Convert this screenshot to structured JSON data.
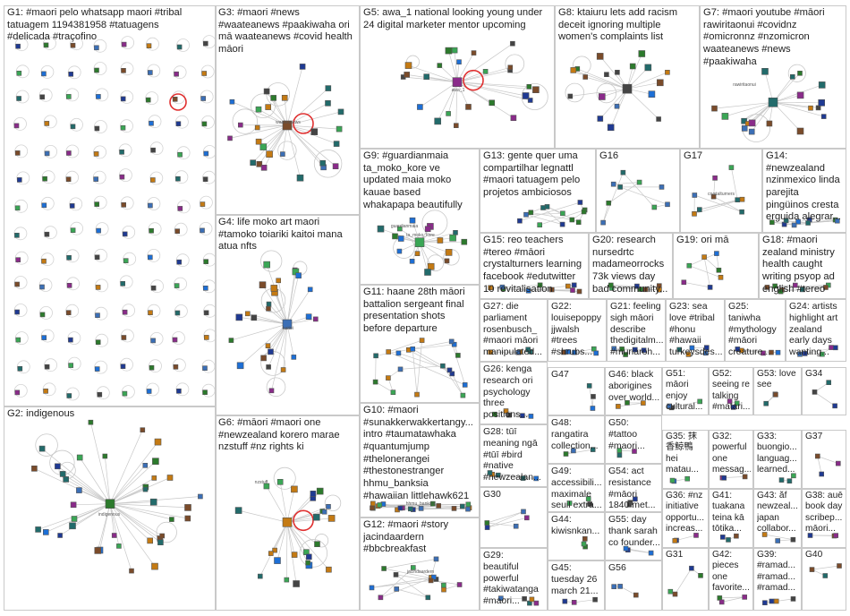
{
  "view": {
    "title": "NodeXL group clustered network graph"
  },
  "colors": {
    "edge": "#c8c8c8",
    "node_border": "#555555",
    "cell_border": "#c9c9c9",
    "self_loop": "#e03030"
  },
  "groups": [
    {
      "id": "G1",
      "label": "G1: #maori pelo whatsapp maori #tribal\ntatuagem 1194381958 #tatuagens\n#delicada #traçofino"
    },
    {
      "id": "G2",
      "label": "G2: indigenous"
    },
    {
      "id": "G3",
      "label": "G3: #maori #news\n#waateanews #paakiwaha ori\nmā waateanews #covid health\nmāori"
    },
    {
      "id": "G4",
      "label": "G4: life moko art maori\n#tamoko toiariki kaitoi mana\natua nfts"
    },
    {
      "id": "G5",
      "label": "G5: awa_1 national looking young under\n24 digital marketer mentor upcoming"
    },
    {
      "id": "G6",
      "label": "G6: #māori #maori one\n#newzealand korero marae\nnzstuff #nz rights ki"
    },
    {
      "id": "G7",
      "label": "G7: #maori youtube #māori\nrawiritaonui #covidnz\n#omicronnz #nzomicron\nwaateanews #news\n#paakiwaha"
    },
    {
      "id": "G8",
      "label": "G8: ktaiuru lets add racism\ndeceit ignoring multiple\nwomen's complaints list"
    },
    {
      "id": "G9",
      "label": "G9: #guardianmaia\nta_moko_kore ve\nupdated maia moko\nkauae based\nwhakapapa beautifully"
    },
    {
      "id": "G10",
      "label": "G10: #maori\n#sunakkerwakkertangy...\nintro #taumatawhaka\n#quantumjump\n#thelonerangei\n#thestonestranger\nhhmu_banksia\n#hawaiian littlehawk621"
    },
    {
      "id": "G11",
      "label": "G11: haane 28th māori\nbattalion sergeant final\npresentation shots\nbefore departure"
    },
    {
      "id": "G12",
      "label": "G12: #maori #story\njacindaardern\n#bbcbreakfast"
    },
    {
      "id": "G13",
      "label": "G13: gente quer uma\ncompartilhar legnattl\n#maori tatuagem pelo\nprojetos ambiciosos"
    },
    {
      "id": "G14",
      "label": "G14:\n#newzealand\nnzinmexico linda\nparejita\npingüinos cresta\nerguida alegrar..."
    },
    {
      "id": "G15",
      "label": "G15: reo teachers\n#tereo #māori\ncrystalturners learning\nfacebook #edutwitter\n10 revitalisation"
    },
    {
      "id": "G16",
      "label": "G16"
    },
    {
      "id": "G17",
      "label": "G17"
    },
    {
      "id": "G18",
      "label": "G18: #maori\nzealand ministry\nhealth caught\nwriting psyop ad\nenglish #tereo"
    },
    {
      "id": "G19",
      "label": "G19: ori mā"
    },
    {
      "id": "G20",
      "label": "G20: research\nnursedrtc\nmadameorrocks\n73k views day\nbad community..."
    },
    {
      "id": "G21",
      "label": "G21: feeling\nsigh māori\ndescribe\nthedigitalm...\n#muriaroh..."
    },
    {
      "id": "G22",
      "label": "G22:\nlouisepoppy\njjwalsh\n#trees\n#shrubs..."
    },
    {
      "id": "G23",
      "label": "G23: sea\nlove #tribal\n#honu\n#hawaii\nturkeysdes..."
    },
    {
      "id": "G24",
      "label": "G24: artists\nhighlight art\nzealand\nearly days\nwanting..."
    },
    {
      "id": "G25",
      "label": "G25:\ntaniwha\n#mythology\n#māori\ncreature..."
    },
    {
      "id": "G26",
      "label": "G26: kenga\nresearch ori\npsychology\nthree\npositions..."
    },
    {
      "id": "G27",
      "label": "G27: die\nparliament\nrosenbusch_\n#maori māori\nmanipulated..."
    },
    {
      "id": "G28",
      "label": "G28: tūī\nmeaning ngā\n#tūī #bird\n#native\n#newzealan..."
    },
    {
      "id": "G29",
      "label": "G29:\nbeautiful\npowerful\n#takiwatanga\n#maori..."
    },
    {
      "id": "G30",
      "label": "G30"
    },
    {
      "id": "G31",
      "label": "G31"
    },
    {
      "id": "G32",
      "label": "G32:\npowerful\none\nmessag..."
    },
    {
      "id": "G33",
      "label": "G33:\nbuongio...\nlanguag...\nlearned..."
    },
    {
      "id": "G34",
      "label": "G34"
    },
    {
      "id": "G35",
      "label": "G35: 抹\n香鯨鴨\nhei\nmatau..."
    },
    {
      "id": "G36",
      "label": "G36: #nz\ninitiative\nopportu...\nincreas..."
    },
    {
      "id": "G37",
      "label": "G37"
    },
    {
      "id": "G38",
      "label": "G38: auē\nbook day\nscribep...\nmāori..."
    },
    {
      "id": "G39",
      "label": "G39:\n#ramad...\n#ramad...\n#ramad..."
    },
    {
      "id": "G40",
      "label": "G40"
    },
    {
      "id": "G41",
      "label": "G41:\ntuakana\nteina kā\ntōtika..."
    },
    {
      "id": "G42",
      "label": "G42:\npieces\none\nfavorite..."
    },
    {
      "id": "G43",
      "label": "G43: ăf\nnewzeal...\njapan\ncollabor..."
    },
    {
      "id": "G44",
      "label": "G44:\nkiwisnkan..."
    },
    {
      "id": "G45",
      "label": "G45:\ntuesday 26\nmarch 21..."
    },
    {
      "id": "G46",
      "label": "G46: black\naborigines\nover world..."
    },
    {
      "id": "G47",
      "label": "G47"
    },
    {
      "id": "G48",
      "label": "G48:\nrangatira\ncollection..."
    },
    {
      "id": "G49",
      "label": "G49:\naccessibili...\nmaximale\nseuil extra..."
    },
    {
      "id": "G50",
      "label": "G50:\n#tattoo\n#maori..."
    },
    {
      "id": "G51",
      "label": "G51:\nmāori\nenjoy\ncultural..."
    },
    {
      "id": "G52",
      "label": "G52:\nseeing re\ntalking\n#matari..."
    },
    {
      "id": "G53",
      "label": "G53: love\nsee"
    },
    {
      "id": "G54",
      "label": "G54: act\nresistance\n#māori\n1840 met..."
    },
    {
      "id": "G55",
      "label": "G55: day\nthank sarah\nco founder..."
    },
    {
      "id": "G56",
      "label": "G56"
    }
  ],
  "node_labels": [
    {
      "id": "n-g3-hub",
      "text": "waateanews"
    },
    {
      "id": "n-g4-hub",
      "text": "kaitoi"
    },
    {
      "id": "n-g5-hub",
      "text": "awa_1"
    },
    {
      "id": "n-g7-a",
      "text": "rawiritaonui"
    },
    {
      "id": "n-g9-a",
      "text": "guardianmaia"
    },
    {
      "id": "n-g9-b",
      "text": "ta_moko_kore"
    },
    {
      "id": "n-g10-a",
      "text": "hhmu_banksia"
    },
    {
      "id": "n-g12-hub",
      "text": "jacindaardern"
    },
    {
      "id": "n-g2-hub",
      "text": "indigenous"
    },
    {
      "id": "n-g6-a",
      "text": "nzstuff"
    },
    {
      "id": "n-g17-a",
      "text": "crystalturners"
    }
  ]
}
